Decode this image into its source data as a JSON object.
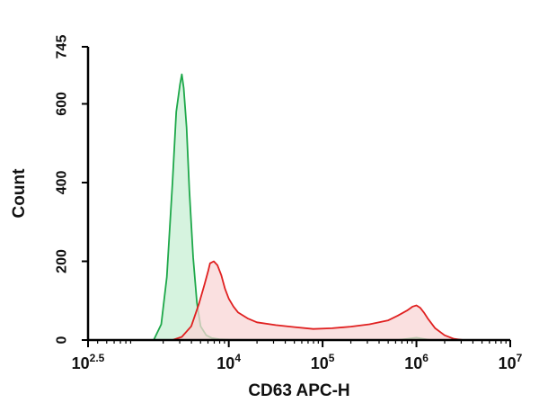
{
  "chart_data": {
    "type": "area",
    "xlabel": "CD63 APC-H",
    "ylabel": "Count",
    "xscale": "log10",
    "xlim_log10": [
      2.5,
      7
    ],
    "ylim": [
      0,
      745
    ],
    "x_ticks": [
      {
        "log10": 2.5,
        "base": "10",
        "exp": "2.5"
      },
      {
        "log10": 4,
        "base": "10",
        "exp": "4"
      },
      {
        "log10": 5,
        "base": "10",
        "exp": "5"
      },
      {
        "log10": 6,
        "base": "10",
        "exp": "6"
      },
      {
        "log10": 7,
        "base": "10",
        "exp": "7"
      }
    ],
    "y_ticks": [
      "0",
      "200",
      "400",
      "600",
      "745"
    ],
    "y_tick_values": [
      0,
      200,
      400,
      600,
      745
    ],
    "grid": false,
    "series": [
      {
        "color": "#1ea84a",
        "fill": "#c8efd4",
        "x_log10": [
          3.2,
          3.28,
          3.34,
          3.4,
          3.44,
          3.48,
          3.5,
          3.52,
          3.55,
          3.58,
          3.62,
          3.66,
          3.7,
          3.76,
          3.82,
          3.9,
          4.0,
          4.3,
          5.0,
          5.8,
          6.0,
          6.15,
          6.4
        ],
        "values": [
          0,
          40,
          160,
          400,
          580,
          650,
          675,
          640,
          540,
          380,
          210,
          95,
          35,
          12,
          5,
          2,
          1,
          0,
          0,
          0,
          6,
          0,
          0
        ]
      },
      {
        "color": "#e02020",
        "fill": "#f8d6d6",
        "x_log10": [
          3.4,
          3.5,
          3.6,
          3.68,
          3.74,
          3.78,
          3.8,
          3.84,
          3.88,
          3.92,
          3.96,
          4.0,
          4.05,
          4.1,
          4.2,
          4.3,
          4.5,
          4.7,
          4.9,
          5.1,
          5.3,
          5.5,
          5.7,
          5.8,
          5.9,
          5.96,
          6.0,
          6.04,
          6.08,
          6.12,
          6.2,
          6.3,
          6.4,
          6.5
        ],
        "values": [
          0,
          8,
          35,
          90,
          140,
          175,
          195,
          200,
          190,
          165,
          130,
          105,
          85,
          70,
          55,
          45,
          38,
          33,
          28,
          30,
          34,
          40,
          50,
          62,
          75,
          85,
          88,
          82,
          70,
          55,
          30,
          12,
          3,
          0
        ]
      }
    ]
  }
}
